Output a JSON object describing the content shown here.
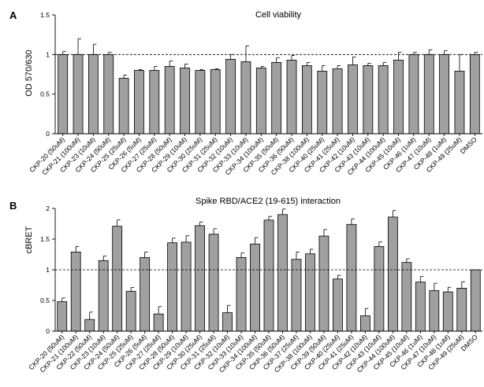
{
  "chart_data": [
    {
      "panel": "A",
      "type": "bar",
      "title": "Cell viability",
      "ylabel": "OD 570/630",
      "ylim": [
        0,
        1.5
      ],
      "yticks": [
        0,
        0.5,
        1,
        1.5
      ],
      "reference_line": 1,
      "categories": [
        "CKP-20 (50uM)",
        "CKP-21 (100uM)",
        "CKP-23 (10uM)",
        "CKP-24 (50uM)",
        "CKP-25 (25uM)",
        "CKP-26 (5uM)",
        "CKP-27 (25uM)",
        "CKP-28 (50uM)",
        "CKP-29 (10uM)",
        "CKP-30 (25uM)",
        "CKP-31 (25uM)",
        "CKP-32 (10uM)",
        "CKP-33 (10uM)",
        "CKP-34 (100uM)",
        "CKP-35 (50uM)",
        "CKP-36 (50uM)",
        "CKP-38 (100uM)",
        "CKP-40 (25uM)",
        "CKP-41 (25uM)",
        "CKP-42 (10uM)",
        "CKP-43 (10uM)",
        "CKP-44 (100uM)",
        "CKP-45 (10uM)",
        "CKP-46 (1uM)",
        "CKP-47 (10uM)",
        "CKP-48 (1uM)",
        "CKP-49 (25uM)",
        "DMSO"
      ],
      "values": [
        1.0,
        1.0,
        1.0,
        1.0,
        0.7,
        0.8,
        0.8,
        0.85,
        0.83,
        0.8,
        0.81,
        0.94,
        0.91,
        0.83,
        0.9,
        0.93,
        0.86,
        0.79,
        0.82,
        0.87,
        0.86,
        0.86,
        0.93,
        1.0,
        1.0,
        1.0,
        0.79,
        1.0
      ],
      "errors": [
        0.04,
        0.2,
        0.13,
        0.03,
        0.04,
        0.01,
        0.05,
        0.07,
        0.05,
        0.01,
        0.01,
        0.06,
        0.2,
        0.02,
        0.06,
        0.06,
        0.04,
        0.07,
        0.04,
        0.1,
        0.03,
        0.04,
        0.1,
        0.03,
        0.06,
        0.05,
        0.21,
        0.03
      ]
    },
    {
      "panel": "B",
      "type": "bar",
      "title": "Spike RBD/ACE2 (19-615) interaction",
      "ylabel": "cBRET",
      "ylim": [
        0,
        2
      ],
      "yticks": [
        0,
        0.5,
        1,
        1.5,
        2
      ],
      "reference_line": 1,
      "categories": [
        "CKP-20 (50uM)",
        "CKP-21 (100uM)",
        "CKP-22 (50uM)",
        "CKP-23 (10uM)",
        "CKP-24 (50uM)",
        "CKP-25 (25uM)",
        "CKP-26 (5uM)",
        "CKP-27 (25uM)",
        "CKP-28 (50uM)",
        "CKP-29 (10uM)",
        "CKP-30 (25uM)",
        "CKP-31 (25uM)",
        "CKP-32 (10uM)",
        "CKP-33 (10uM)",
        "CKP-34 (100uM)",
        "CKP-35 (50uM)",
        "CKP-36 (50uM)",
        "CKP-37 (25uM)",
        "CKP-38 (100uM)",
        "CKP-39 (50uM)",
        "CKP-40 (25uM)",
        "CKP-41 (25uM)",
        "CKP-42 (10uM)",
        "CKP-43 (10uM)",
        "CKP-44 (100uM)",
        "CKP-45 (10uM)",
        "CKP-46 (1uM)",
        "CKP-47 (10uM)",
        "CKP-48 (1uM)",
        "CKP-49 (25uM)",
        "DMSO"
      ],
      "values": [
        0.48,
        1.29,
        0.19,
        1.15,
        1.71,
        0.65,
        1.2,
        0.28,
        1.44,
        1.45,
        1.72,
        1.58,
        0.3,
        1.2,
        1.42,
        1.81,
        1.9,
        1.17,
        1.26,
        1.55,
        0.85,
        1.74,
        0.25,
        1.38,
        1.86,
        1.12,
        0.8,
        0.66,
        0.64,
        0.7,
        1.0
      ]
    }
  ]
}
